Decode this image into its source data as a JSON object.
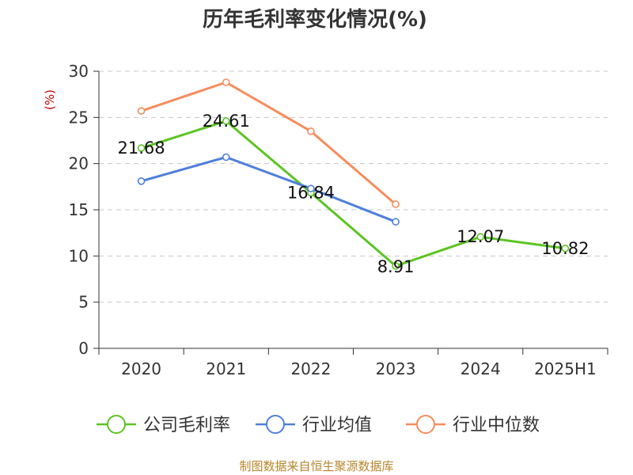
{
  "chart_data": {
    "type": "line",
    "title": "历年毛利率变化情况(%)",
    "unit_label": "(%)",
    "categories": [
      "2020",
      "2021",
      "2022",
      "2023",
      "2024",
      "2025H1"
    ],
    "yticks": [
      "0",
      "5",
      "10",
      "15",
      "20",
      "25",
      "30"
    ],
    "ylim": [
      0,
      30
    ],
    "grid": true,
    "legend_position": "bottom",
    "series": [
      {
        "name": "公司毛利率",
        "color": "#5bc423",
        "values": [
          21.68,
          24.61,
          16.84,
          8.91,
          12.07,
          10.82
        ],
        "labels": [
          "21.68",
          "24.61",
          "16.84",
          "8.91",
          "12.07",
          "10.82"
        ]
      },
      {
        "name": "行业均值",
        "color": "#4f7fdc",
        "values": [
          18.1,
          20.7,
          17.3,
          13.7,
          null,
          null
        ]
      },
      {
        "name": "行业中位数",
        "color": "#f58d5c",
        "values": [
          25.7,
          28.8,
          23.5,
          15.6,
          null,
          null
        ]
      }
    ],
    "source": "制图数据来自恒生聚源数据库"
  }
}
